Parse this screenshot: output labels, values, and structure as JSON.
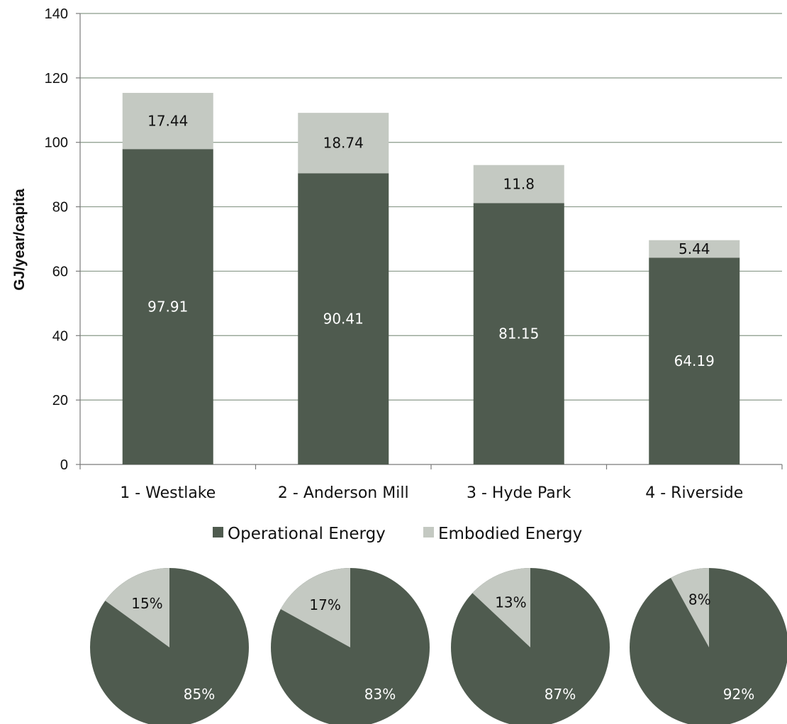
{
  "chart_data": [
    {
      "type": "bar",
      "stacked": true,
      "categories": [
        "1 - Westlake",
        "2 - Anderson Mill",
        "3 - Hyde Park",
        "4 - Riverside"
      ],
      "series": [
        {
          "name": "Operational Energy",
          "values": [
            97.91,
            90.41,
            81.15,
            64.19
          ],
          "color": "#4f5b4f"
        },
        {
          "name": "Embodied Energy",
          "values": [
            17.44,
            18.74,
            11.8,
            5.44
          ],
          "color": "#c4c9c2"
        }
      ],
      "value_labels": {
        "operational": [
          "97.91",
          "90.41",
          "81.15",
          "64.19"
        ],
        "embodied": [
          "17.44",
          "18.74",
          "11.8",
          "5.44"
        ]
      },
      "title": "",
      "xlabel": "",
      "ylabel": "GJ/year/capita",
      "ylim": [
        0,
        140
      ],
      "yticks": [
        0,
        20,
        40,
        60,
        80,
        100,
        120,
        140
      ],
      "ytick_labels": [
        "0",
        "20",
        "40",
        "60",
        "80",
        "100",
        "120",
        "140"
      ],
      "grid": true,
      "legend": "bottom"
    },
    {
      "type": "pie",
      "pies": [
        {
          "operational": 85,
          "embodied": 15,
          "operational_label": "85%",
          "embodied_label": "15%"
        },
        {
          "operational": 83,
          "embodied": 17,
          "operational_label": "83%",
          "embodied_label": "17%"
        },
        {
          "operational": 87,
          "embodied": 13,
          "operational_label": "87%",
          "embodied_label": "13%"
        },
        {
          "operational": 92,
          "embodied": 8,
          "operational_label": "92%",
          "embodied_label": "8%"
        }
      ]
    }
  ],
  "legend": {
    "items": [
      {
        "label": "Operational Energy",
        "color": "#4f5b4f"
      },
      {
        "label": "Embodied Energy",
        "color": "#c4c9c2"
      }
    ]
  },
  "colors": {
    "operational": "#4f5b4f",
    "embodied": "#c4c9c2",
    "gridline": "#8a9a8a",
    "axis": "#7a7a7a"
  }
}
